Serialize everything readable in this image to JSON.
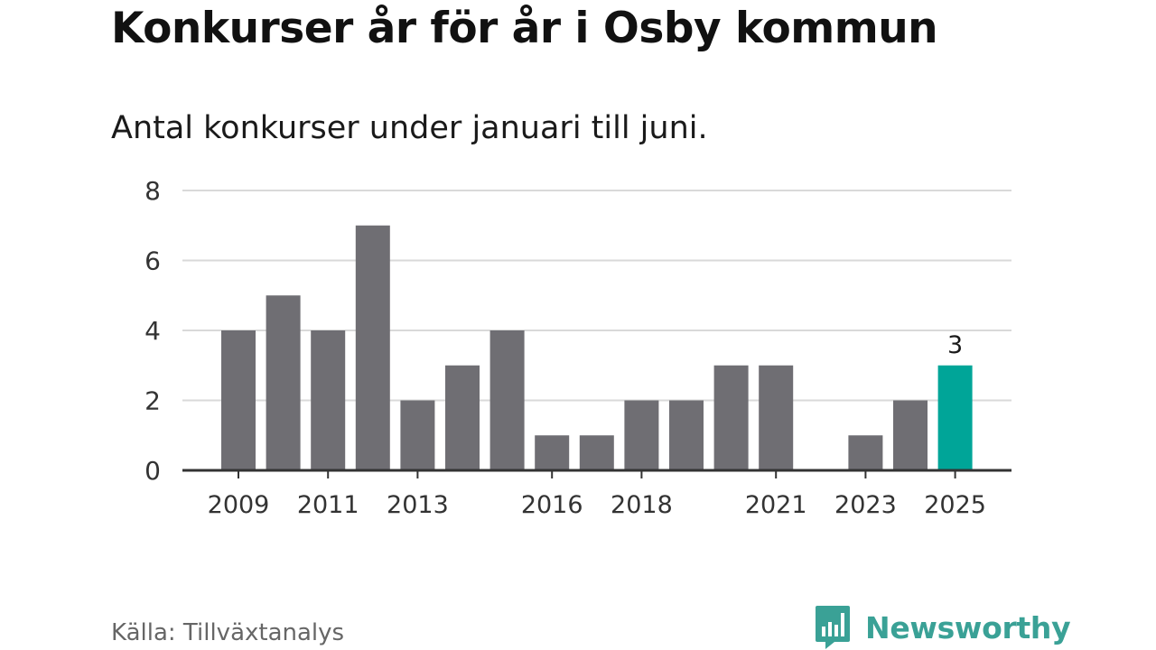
{
  "title": "Konkurser år för år i Osby kommun",
  "subtitle": "Antal konkurser under januari till juni.",
  "source": "Källa: Tillväxtanalys",
  "brand": {
    "name": "Newsworthy",
    "icon": "bar-chart-speech-bubble-icon",
    "color": "#3aa196"
  },
  "colors": {
    "bar": "#6f6e73",
    "highlight": "#00a598",
    "grid": "#d9d9d9",
    "axis": "#333333"
  },
  "chart_data": {
    "type": "bar",
    "categories": [
      "2009",
      "2010",
      "2011",
      "2012",
      "2013",
      "2014",
      "2015",
      "2016",
      "2017",
      "2018",
      "2019",
      "2020",
      "2021",
      "2022",
      "2023",
      "2024",
      "2025"
    ],
    "values": [
      4,
      5,
      4,
      7,
      2,
      3,
      4,
      1,
      1,
      2,
      2,
      3,
      3,
      0,
      1,
      2,
      3
    ],
    "x_tick_labels": [
      "2009",
      "2011",
      "2013",
      "2016",
      "2018",
      "2021",
      "2023",
      "2025"
    ],
    "y_ticks": [
      0,
      2,
      4,
      6,
      8
    ],
    "ylim": [
      0,
      8
    ],
    "highlight_category": "2025",
    "data_labels": [
      {
        "category": "2025",
        "text": "3"
      }
    ],
    "grid": true,
    "xlabel": "",
    "ylabel": ""
  }
}
